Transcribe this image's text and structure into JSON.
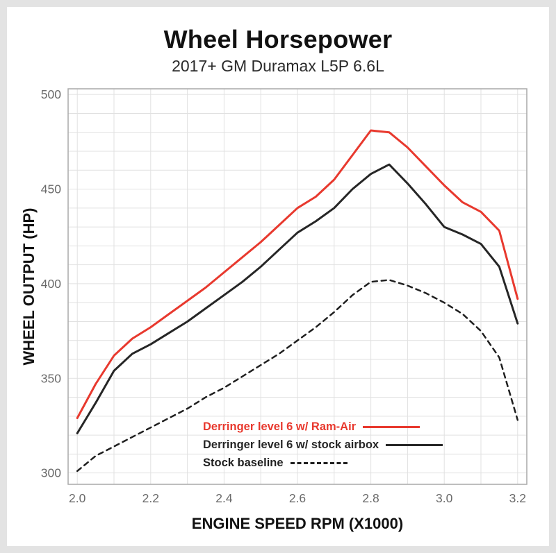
{
  "page": {
    "background_color": "#e3e3e3",
    "card_background_color": "#ffffff"
  },
  "chart_data": {
    "type": "line",
    "title": "Wheel Horsepower",
    "subtitle": "2017+ GM Duramax L5P 6.6L",
    "xlabel": "ENGINE SPEED RPM (X1000)",
    "ylabel": "WHEEL OUTPUT (HP)",
    "xlim": [
      1.975,
      3.225
    ],
    "ylim": [
      294,
      503
    ],
    "xticks": [
      2.0,
      2.2,
      2.4,
      2.6,
      2.8,
      3.0,
      3.2
    ],
    "yticks": [
      300,
      350,
      400,
      450,
      500
    ],
    "grid": {
      "show": true,
      "x_minor_step": 0.1,
      "y_minor_step": 10,
      "color": "#e1e1e1"
    },
    "axis_border_color": "#a9a9a9",
    "tick_label_color": "#6a6a6a",
    "legend_position": "inside-bottom-right",
    "x": [
      2.0,
      2.05,
      2.1,
      2.15,
      2.2,
      2.25,
      2.3,
      2.35,
      2.4,
      2.45,
      2.5,
      2.55,
      2.6,
      2.65,
      2.7,
      2.75,
      2.8,
      2.85,
      2.9,
      2.95,
      3.0,
      3.05,
      3.1,
      3.15,
      3.2
    ],
    "series": [
      {
        "name": "Derringer level 6 w/ Ram-Air",
        "color": "#e8392e",
        "style": "solid",
        "width": 3,
        "values": [
          329,
          347,
          362,
          371,
          377,
          384,
          391,
          398,
          406,
          414,
          422,
          431,
          440,
          446,
          455,
          468,
          481,
          480,
          472,
          462,
          452,
          443,
          438,
          428,
          392
        ]
      },
      {
        "name": "Derringer level 6 w/ stock airbox",
        "color": "#262626",
        "style": "solid",
        "width": 3,
        "values": [
          321,
          337,
          354,
          363,
          368,
          374,
          380,
          387,
          394,
          401,
          409,
          418,
          427,
          433,
          440,
          450,
          458,
          463,
          453,
          442,
          430,
          426,
          421,
          409,
          379
        ]
      },
      {
        "name": "Stock baseline",
        "color": "#1f1f1f",
        "style": "dashed",
        "width": 2.5,
        "values": [
          301,
          309,
          314,
          319,
          324,
          329,
          334,
          340,
          345,
          351,
          357,
          363,
          370,
          377,
          385,
          394,
          401,
          402,
          399,
          395,
          390,
          384,
          375,
          361,
          328
        ]
      }
    ]
  }
}
